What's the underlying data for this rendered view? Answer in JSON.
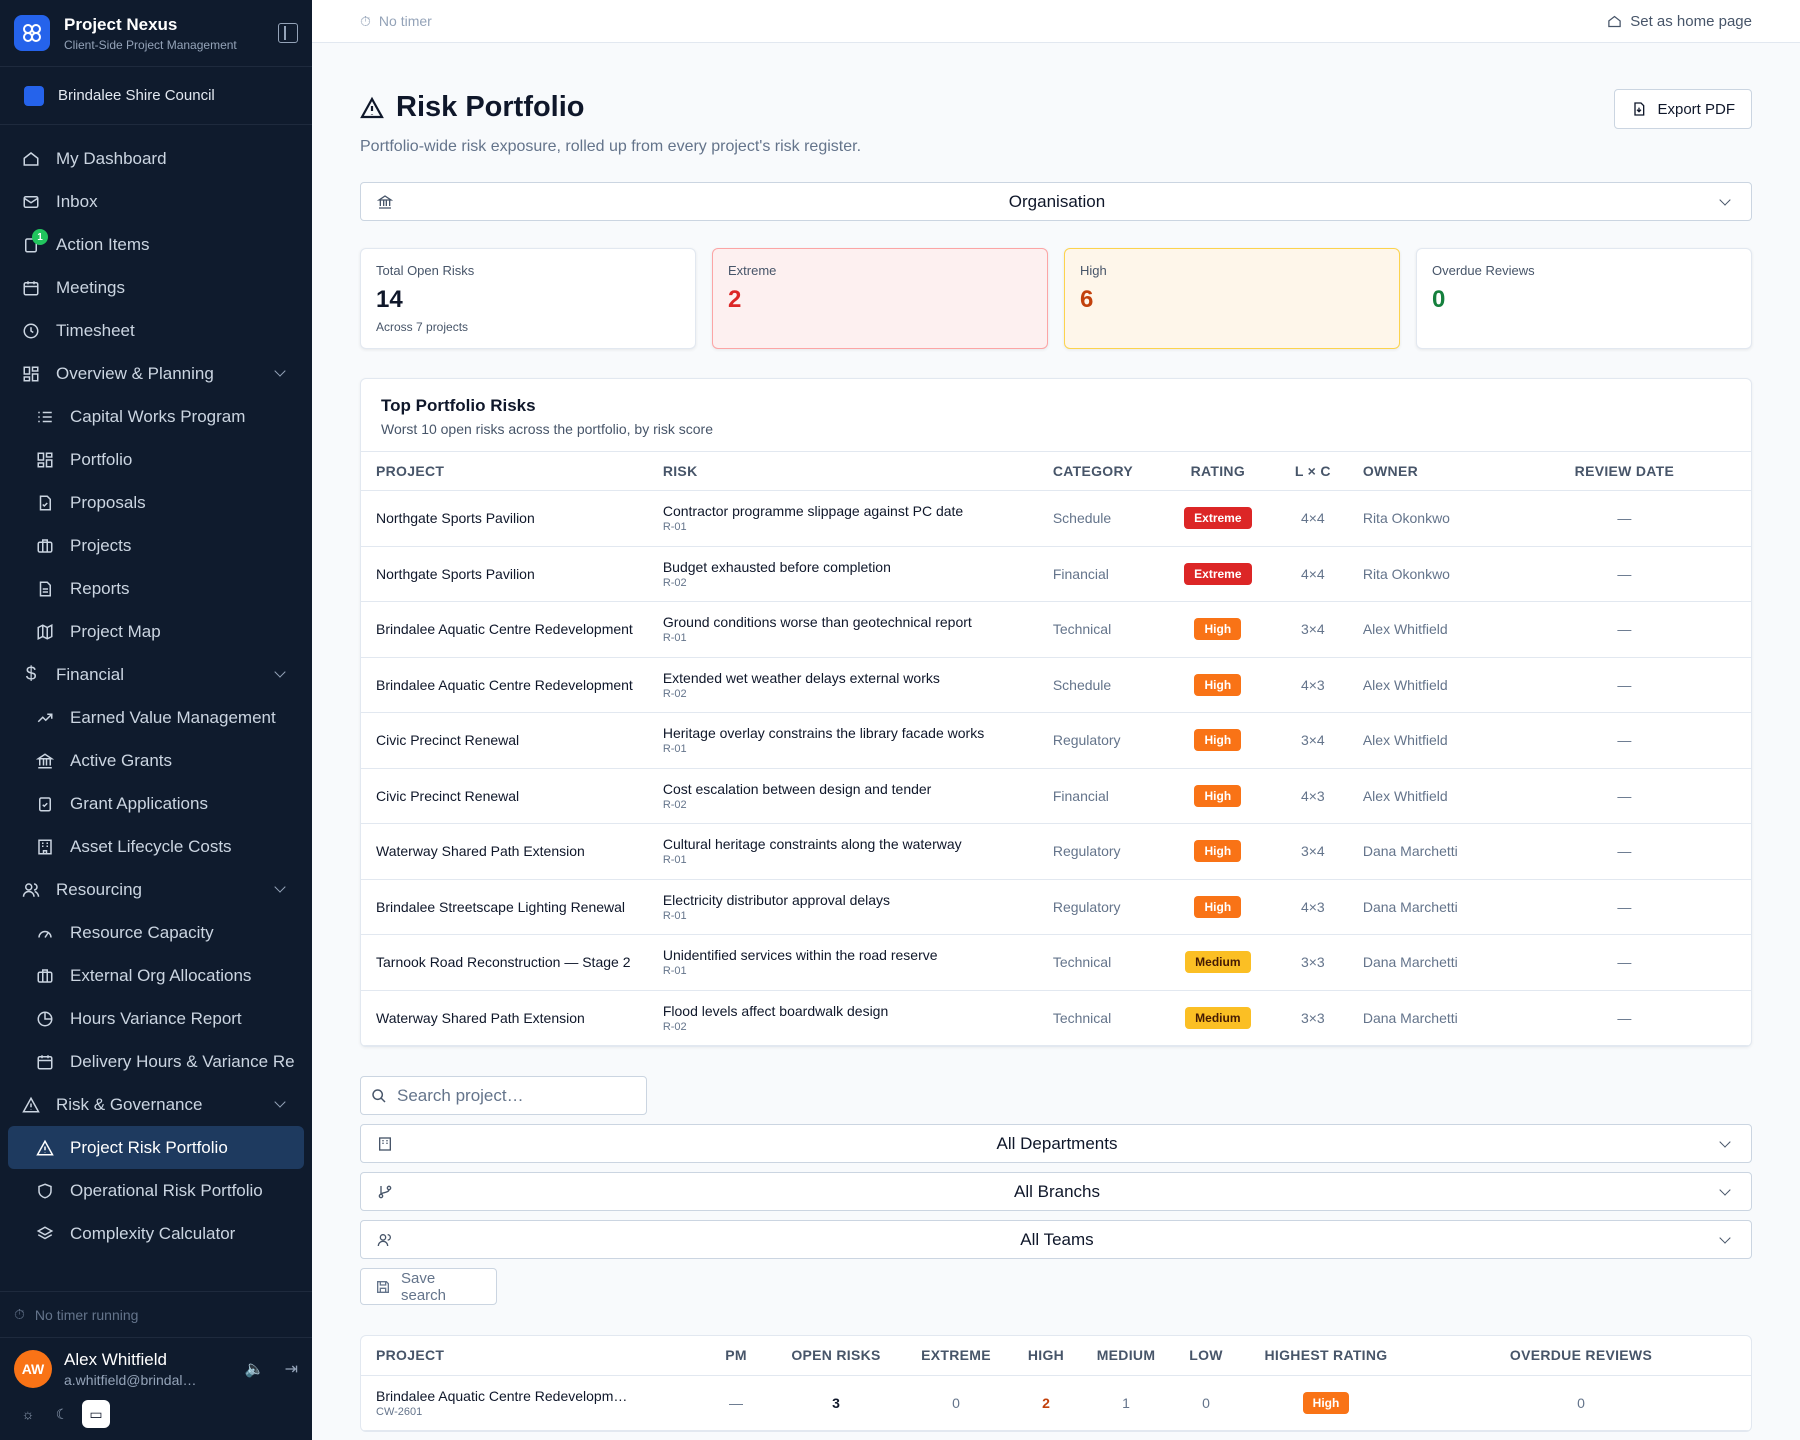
{
  "topbar": {
    "timer": "No timer",
    "home_label": "Set as home page"
  },
  "brand": {
    "title": "Project Nexus",
    "subtitle": "Client-Side Project Management"
  },
  "org": {
    "name": "Brindalee Shire Council"
  },
  "nav": {
    "dashboard": "My Dashboard",
    "inbox": "Inbox",
    "action_items": "Action Items",
    "action_badge": "1",
    "meetings": "Meetings",
    "timesheet": "Timesheet",
    "overview": "Overview & Planning",
    "capital_works": "Capital Works Program",
    "portfolio": "Portfolio",
    "proposals": "Proposals",
    "projects": "Projects",
    "reports": "Reports",
    "project_map": "Project Map",
    "financial": "Financial",
    "evm": "Earned Value Management",
    "active_grants": "Active Grants",
    "grant_apps": "Grant Applications",
    "asset_costs": "Asset Lifecycle Costs",
    "resourcing": "Resourcing",
    "capacity": "Resource Capacity",
    "ext_org": "External Org Allocations",
    "hours_var": "Hours Variance Report",
    "delivery_hours": "Delivery Hours & Variance Re",
    "risk_gov": "Risk & Governance",
    "risk_portfolio": "Project Risk Portfolio",
    "op_risk": "Operational Risk Portfolio",
    "complexity": "Complexity Calculator"
  },
  "sidebar_footer": {
    "timer": "No timer running",
    "user_initials": "AW",
    "user_name": "Alex Whitfield",
    "user_email": "a.whitfield@brindal…"
  },
  "page": {
    "title": "Risk Portfolio",
    "subtitle": "Portfolio-wide risk exposure, rolled up from every project's risk register.",
    "export_label": "Export PDF",
    "scope_select": "Organisation"
  },
  "cards": {
    "total_label": "Total Open Risks",
    "total_value": "14",
    "total_sub": "Across 7 projects",
    "extreme_label": "Extreme",
    "extreme_value": "2",
    "high_label": "High",
    "high_value": "6",
    "overdue_label": "Overdue Reviews",
    "overdue_value": "0"
  },
  "top_risks": {
    "title": "Top Portfolio Risks",
    "subtitle": "Worst 10 open risks across the portfolio, by risk score",
    "columns": [
      "PROJECT",
      "RISK",
      "CATEGORY",
      "RATING",
      "L × C",
      "OWNER",
      "REVIEW DATE"
    ],
    "rows": [
      {
        "project": "Northgate Sports Pavilion",
        "risk": "Contractor programme slippage against PC date",
        "id": "R-01",
        "category": "Schedule",
        "rating": "Extreme",
        "lc": "4×4",
        "owner": "Rita Okonkwo",
        "review": "—"
      },
      {
        "project": "Northgate Sports Pavilion",
        "risk": "Budget exhausted before completion",
        "id": "R-02",
        "category": "Financial",
        "rating": "Extreme",
        "lc": "4×4",
        "owner": "Rita Okonkwo",
        "review": "—"
      },
      {
        "project": "Brindalee Aquatic Centre Redevelopment",
        "risk": "Ground conditions worse than geotechnical report",
        "id": "R-01",
        "category": "Technical",
        "rating": "High",
        "lc": "3×4",
        "owner": "Alex Whitfield",
        "review": "—"
      },
      {
        "project": "Brindalee Aquatic Centre Redevelopment",
        "risk": "Extended wet weather delays external works",
        "id": "R-02",
        "category": "Schedule",
        "rating": "High",
        "lc": "4×3",
        "owner": "Alex Whitfield",
        "review": "—"
      },
      {
        "project": "Civic Precinct Renewal",
        "risk": "Heritage overlay constrains the library facade works",
        "id": "R-01",
        "category": "Regulatory",
        "rating": "High",
        "lc": "3×4",
        "owner": "Alex Whitfield",
        "review": "—"
      },
      {
        "project": "Civic Precinct Renewal",
        "risk": "Cost escalation between design and tender",
        "id": "R-02",
        "category": "Financial",
        "rating": "High",
        "lc": "4×3",
        "owner": "Alex Whitfield",
        "review": "—"
      },
      {
        "project": "Waterway Shared Path Extension",
        "risk": "Cultural heritage constraints along the waterway",
        "id": "R-01",
        "category": "Regulatory",
        "rating": "High",
        "lc": "3×4",
        "owner": "Dana Marchetti",
        "review": "—"
      },
      {
        "project": "Brindalee Streetscape Lighting Renewal",
        "risk": "Electricity distributor approval delays",
        "id": "R-01",
        "category": "Regulatory",
        "rating": "High",
        "lc": "4×3",
        "owner": "Dana Marchetti",
        "review": "—"
      },
      {
        "project": "Tarnook Road Reconstruction — Stage 2",
        "risk": "Unidentified services within the road reserve",
        "id": "R-01",
        "category": "Technical",
        "rating": "Medium",
        "lc": "3×3",
        "owner": "Dana Marchetti",
        "review": "—"
      },
      {
        "project": "Waterway Shared Path Extension",
        "risk": "Flood levels affect boardwalk design",
        "id": "R-02",
        "category": "Technical",
        "rating": "Medium",
        "lc": "3×3",
        "owner": "Dana Marchetti",
        "review": "—"
      }
    ]
  },
  "filters": {
    "search_placeholder": "Search project…",
    "departments": "All Departments",
    "branchs": "All Branchs",
    "teams": "All Teams",
    "save_label": "Save search"
  },
  "project_table": {
    "columns": [
      "PROJECT",
      "PM",
      "OPEN RISKS",
      "EXTREME",
      "HIGH",
      "MEDIUM",
      "LOW",
      "HIGHEST RATING",
      "OVERDUE REVIEWS"
    ],
    "rows": [
      {
        "project": "Brindalee Aquatic Centre Redevelopm…",
        "code": "CW-2601",
        "pm": "—",
        "open": "3",
        "extreme": "0",
        "high": "2",
        "medium": "1",
        "low": "0",
        "highest": "High",
        "overdue": "0"
      }
    ]
  },
  "colors": {
    "sidebar_bg": "#0f1b2d",
    "accent": "#2563eb",
    "extreme": "#dc2626",
    "high": "#f97316",
    "medium": "#fbbf24",
    "overdue_ok": "#15803d"
  }
}
